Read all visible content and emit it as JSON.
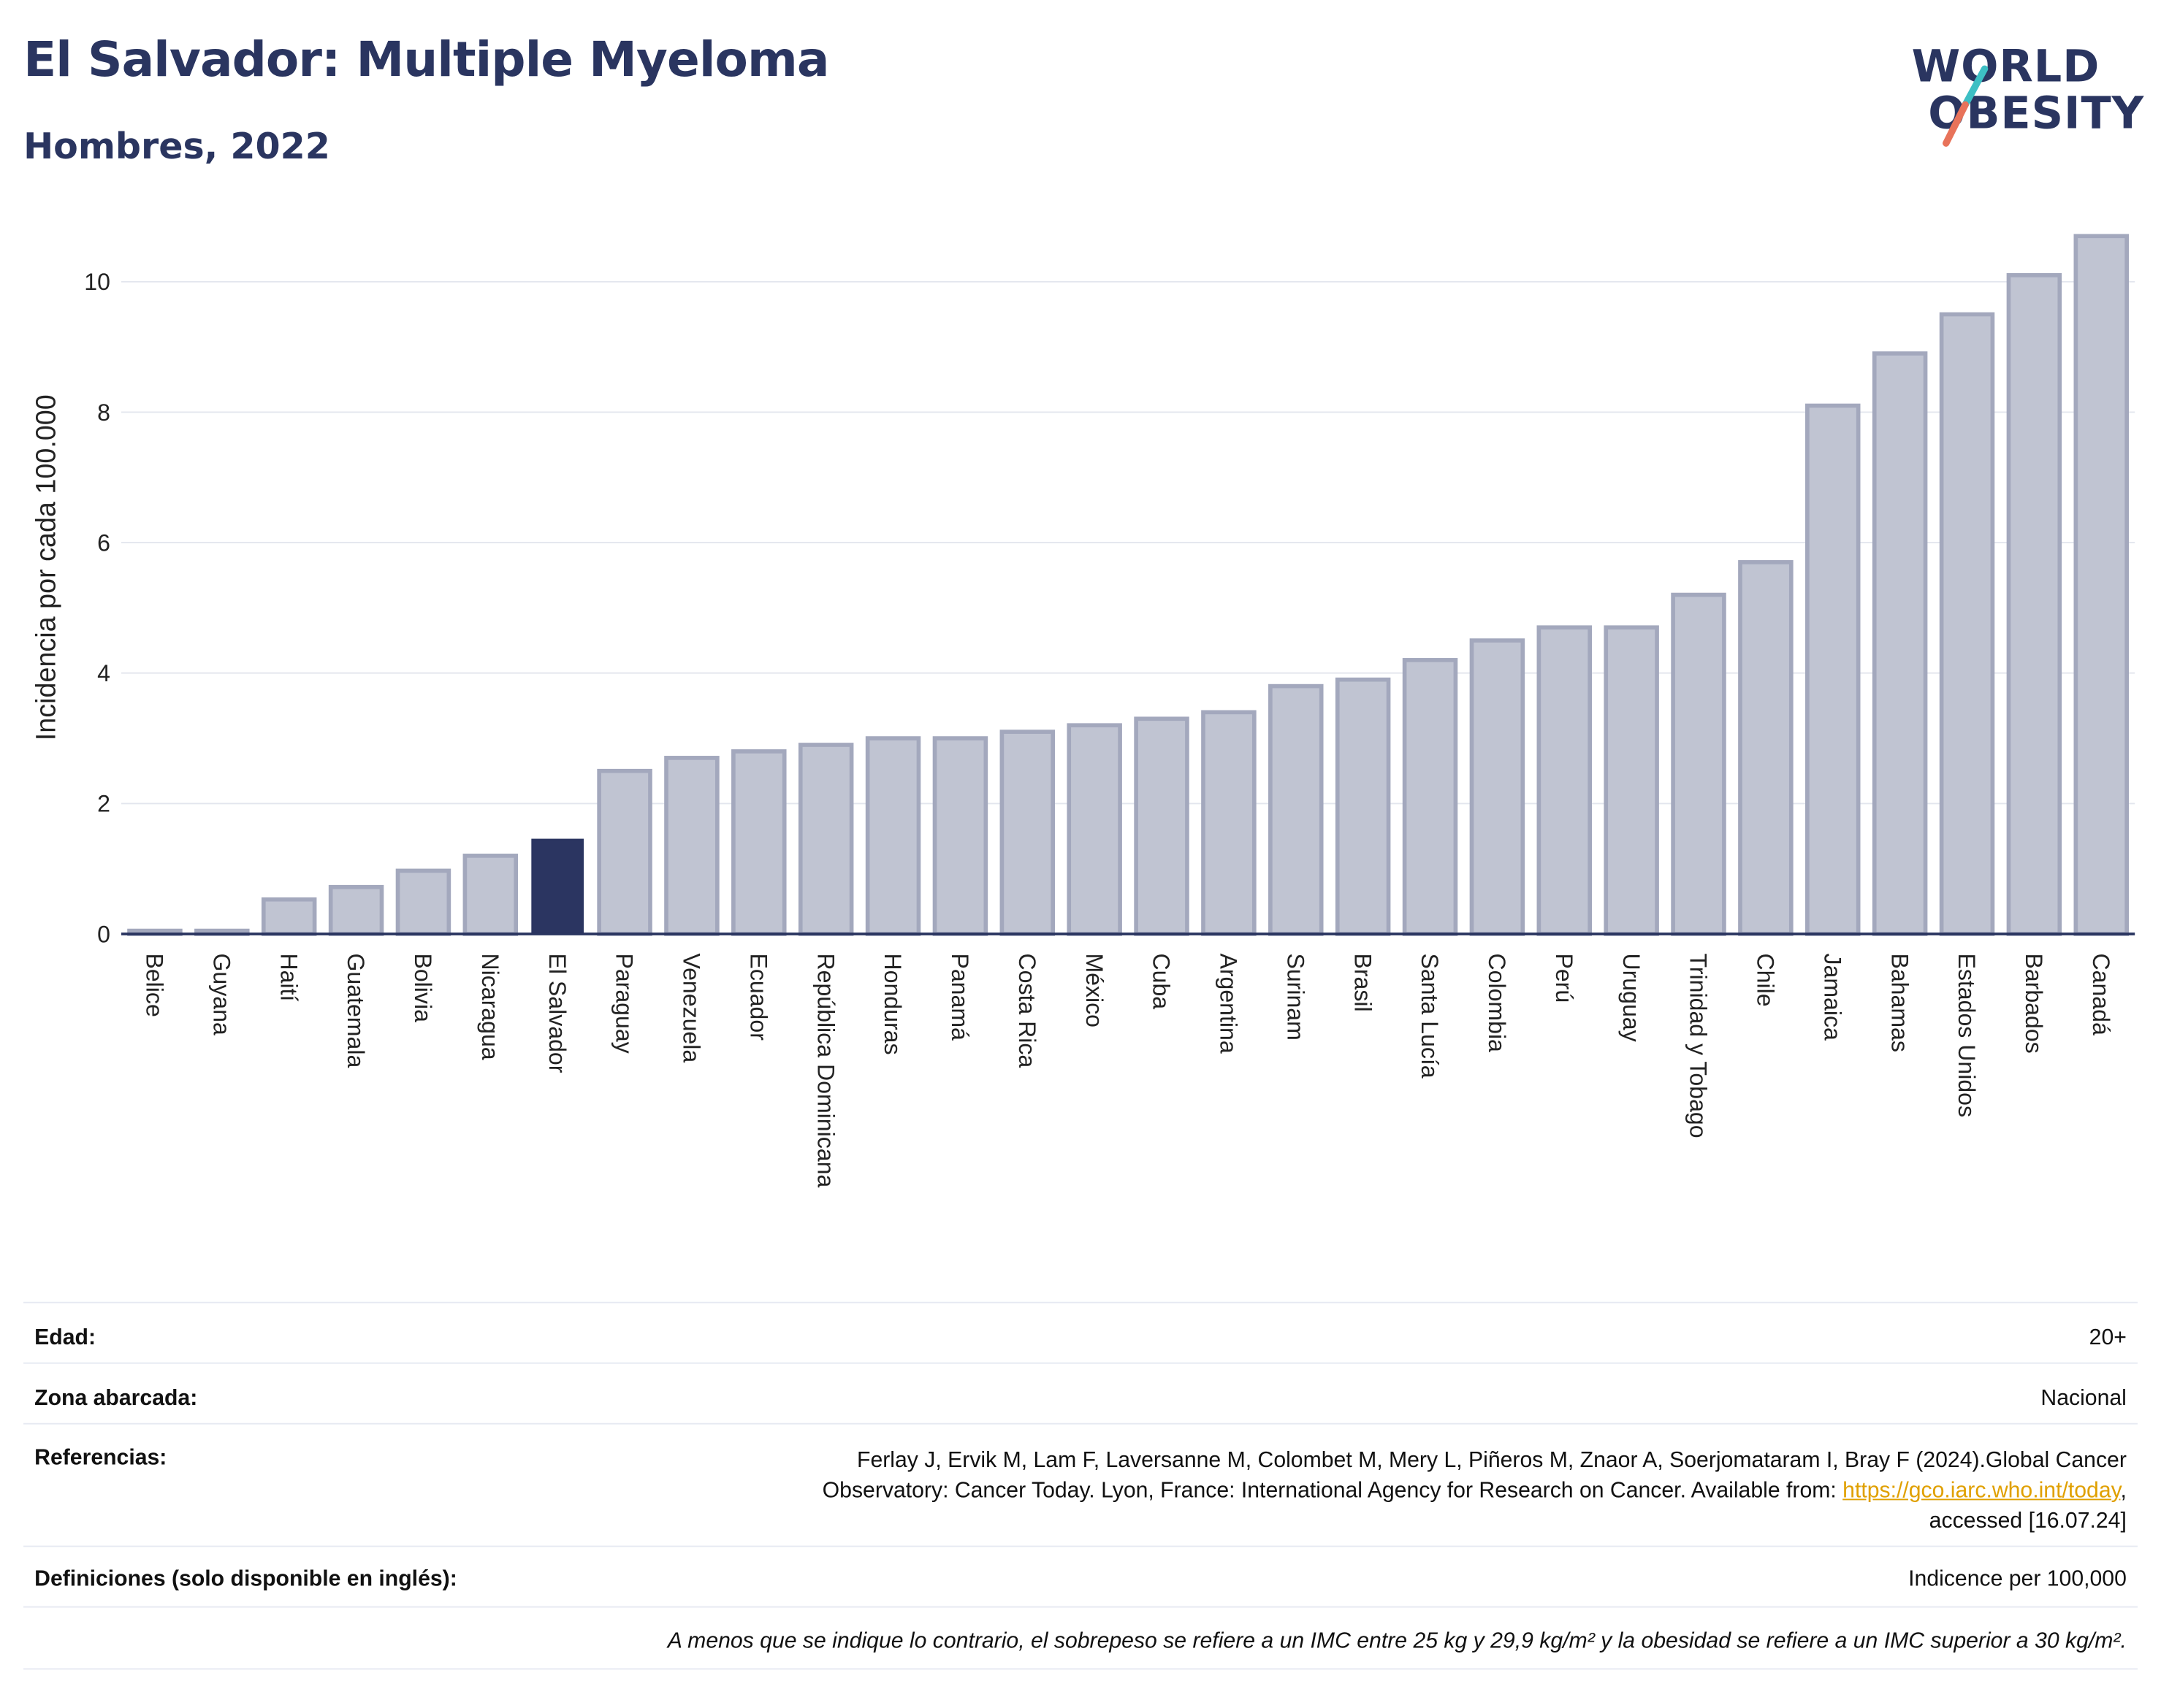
{
  "header": {
    "title": "El Salvador: Multiple Myeloma",
    "subtitle": "Hombres, 2022"
  },
  "logo": {
    "line1": "WORLD",
    "line2": "OBESITY",
    "accent_colors": [
      "#3dbfc4",
      "#e8735a"
    ]
  },
  "colors": {
    "highlight": "#2b3561",
    "bar": "#c0c4d2",
    "bar_stroke": "#a3a8bd",
    "axis": "#2a3560"
  },
  "chart_data": {
    "type": "bar",
    "title": "El Salvador: Multiple Myeloma",
    "subtitle": "Hombres, 2022",
    "xlabel": "",
    "ylabel": "Incidencia por cada 100.000",
    "ylim": [
      0,
      11.0
    ],
    "yticks": [
      0,
      2,
      4,
      6,
      8,
      10
    ],
    "grid": true,
    "highlight": "El Salvador",
    "categories": [
      "Belice",
      "Guyana",
      "Haití",
      "Guatemala",
      "Bolivia",
      "Nicaragua",
      "El Salvador",
      "Paraguay",
      "Venezuela",
      "Ecuador",
      "República Dominicana",
      "Honduras",
      "Panamá",
      "Costa Rica",
      "México",
      "Cuba",
      "Argentina",
      "Surinam",
      "Brasil",
      "Santa Lucía",
      "Colombia",
      "Perú",
      "Uruguay",
      "Trinidad y Tobago",
      "Chile",
      "Jamaica",
      "Bahamas",
      "Estados Unidos",
      "Barbados",
      "Canadá"
    ],
    "values": [
      0.05,
      0.05,
      0.53,
      0.72,
      0.97,
      1.2,
      1.45,
      2.5,
      2.7,
      2.8,
      2.9,
      3.0,
      3.0,
      3.1,
      3.2,
      3.3,
      3.4,
      3.8,
      3.9,
      4.2,
      4.5,
      4.7,
      4.7,
      5.2,
      5.7,
      8.1,
      8.9,
      9.5,
      10.1,
      10.7
    ]
  },
  "info": {
    "edad_label": "Edad:",
    "edad_value": "20+",
    "zona_label": "Zona abarcada:",
    "zona_value": "Nacional",
    "ref_label": "Referencias:",
    "ref_line1": "Ferlay J, Ervik M, Lam F, Laversanne M, Colombet M, Mery L, Piñeros M, Znaor A, Soerjomataram I, Bray F (2024).Global Cancer",
    "ref_line2_pre": "Observatory: Cancer Today. Lyon, France: International Agency for Research on Cancer. Available from: ",
    "ref_link": "https://gco.iarc.who.int/today",
    "ref_line2_post": ",",
    "ref_line3": "accessed [16.07.24]",
    "def_label": "Definiciones (solo disponible en inglés):",
    "def_value": "Indicence per 100,000",
    "note": "A menos que se indique lo contrario, el sobrepeso se refiere a un IMC entre 25 kg y 29,9 kg/m² y la obesidad se refiere a un IMC superior a 30 kg/m²."
  }
}
